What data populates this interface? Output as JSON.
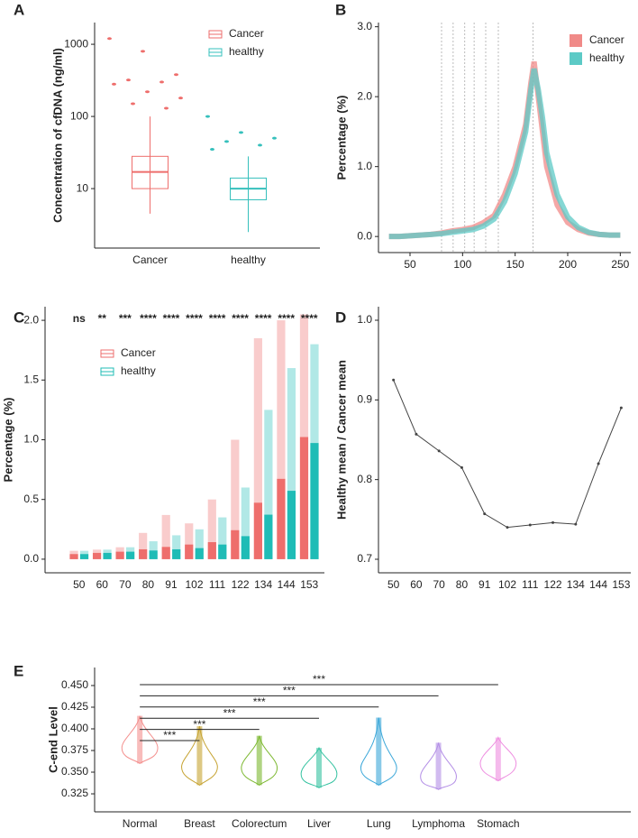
{
  "chart_data": [
    {
      "type": "box",
      "panel": "A",
      "ylabel": "Concentration of cfDNA (ng/ml)",
      "log_y": true,
      "categories": [
        "Cancer",
        "healthy"
      ],
      "ylim": [
        1.5,
        2000
      ],
      "yticks": [
        10,
        100,
        1000
      ],
      "series": [
        {
          "name": "Cancer",
          "color": "#ee6e6c",
          "low": 4.5,
          "q1": 10,
          "median": 17,
          "q3": 28,
          "high": 100,
          "outliers": [
            1200,
            800,
            380,
            320,
            300,
            280,
            220,
            180,
            150,
            130
          ]
        },
        {
          "name": "healthy",
          "color": "#36c0bc",
          "low": 2.5,
          "q1": 7,
          "median": 10,
          "q3": 14,
          "high": 28,
          "outliers": [
            100,
            60,
            50,
            45,
            40,
            35
          ]
        }
      ]
    },
    {
      "type": "line",
      "panel": "B",
      "ylabel": "Percentage (%)",
      "x": [
        30,
        40,
        50,
        60,
        70,
        80,
        90,
        100,
        110,
        120,
        130,
        140,
        150,
        160,
        165,
        168,
        172,
        176,
        180,
        190,
        200,
        210,
        220,
        230,
        240,
        250
      ],
      "xlim": [
        20,
        260
      ],
      "xticks": [
        50,
        100,
        150,
        200,
        250
      ],
      "ylim": [
        -0.23,
        3.06
      ],
      "yticks": [
        {
          "value": 0,
          "label": "0.0"
        },
        {
          "value": 1,
          "label": "1.0"
        },
        {
          "value": 2,
          "label": "2.0"
        },
        {
          "value": 3,
          "label": "3.0"
        }
      ],
      "vlines": [
        80,
        91,
        102,
        111,
        122,
        134,
        167
      ],
      "series": [
        {
          "name": "Cancer",
          "color": "#f08a88",
          "values": [
            0,
            0,
            0.01,
            0.02,
            0.03,
            0.05,
            0.08,
            0.1,
            0.13,
            0.2,
            0.3,
            0.6,
            1.0,
            1.6,
            2.2,
            2.5,
            2.0,
            1.5,
            1.0,
            0.45,
            0.2,
            0.1,
            0.05,
            0.03,
            0.02,
            0.02
          ]
        },
        {
          "name": "healthy",
          "color": "#5ccac6",
          "values": [
            0,
            0,
            0.01,
            0.02,
            0.03,
            0.04,
            0.06,
            0.08,
            0.1,
            0.15,
            0.25,
            0.5,
            0.9,
            1.5,
            2.1,
            2.4,
            2.1,
            1.7,
            1.2,
            0.6,
            0.28,
            0.13,
            0.06,
            0.03,
            0.02,
            0.02
          ]
        }
      ]
    },
    {
      "type": "strip",
      "panel": "C",
      "ylabel": "Percentage (%)",
      "categories": [
        "50",
        "60",
        "70",
        "80",
        "91",
        "102",
        "111",
        "122",
        "134",
        "144",
        "153"
      ],
      "significance": [
        "ns",
        "**",
        "***",
        "****",
        "****",
        "****",
        "****",
        "****",
        "****",
        "****",
        "****"
      ],
      "ylim": [
        -0.114,
        2.114
      ],
      "yticks": [
        {
          "value": 0,
          "label": "0.0"
        },
        0.5,
        {
          "value": 1,
          "label": "1.0"
        },
        1.5,
        {
          "value": 2,
          "label": "2.0"
        }
      ],
      "series": [
        {
          "name": "Cancer",
          "color": "#ee6e6c",
          "values": [
            0.02,
            0.03,
            0.04,
            0.06,
            0.08,
            0.1,
            0.12,
            0.22,
            0.45,
            0.65,
            1.0
          ],
          "max": [
            0.07,
            0.08,
            0.1,
            0.22,
            0.37,
            0.3,
            0.5,
            1.0,
            1.85,
            2.0,
            2.05
          ]
        },
        {
          "name": "healthy",
          "color": "#1fbcb6",
          "values": [
            0.02,
            0.03,
            0.04,
            0.05,
            0.06,
            0.07,
            0.1,
            0.17,
            0.35,
            0.55,
            0.95
          ],
          "max": [
            0.07,
            0.08,
            0.1,
            0.15,
            0.2,
            0.25,
            0.35,
            0.6,
            1.25,
            1.6,
            1.8
          ]
        }
      ]
    },
    {
      "type": "line",
      "panel": "D",
      "ylabel": "Healthy mean / Cancer mean",
      "categories": [
        "50",
        "60",
        "70",
        "80",
        "91",
        "102",
        "111",
        "122",
        "134",
        "144",
        "153"
      ],
      "ylim": [
        0.683,
        1.017
      ],
      "yticks": [
        0.7,
        0.8,
        0.9,
        {
          "value": 1,
          "label": "1.0"
        }
      ],
      "series": [
        {
          "color": "#444444",
          "values": [
            0.925,
            0.857,
            0.836,
            0.815,
            0.757,
            0.74,
            0.743,
            0.746,
            0.744,
            0.82,
            0.89
          ]
        }
      ]
    },
    {
      "type": "violin",
      "panel": "E",
      "ylabel": "C-end Level",
      "categories": [
        "Normal",
        "Breast",
        "Colorectum",
        "Liver",
        "Lung",
        "Lymphoma",
        "Stomach"
      ],
      "colors": [
        "#f4908e",
        "#c6a331",
        "#7cb82f",
        "#33c2a0",
        "#3aa7d9",
        "#b38ee6",
        "#ee8ce0"
      ],
      "min": [
        0.36,
        0.335,
        0.335,
        0.332,
        0.335,
        0.33,
        0.34
      ],
      "median": [
        0.378,
        0.356,
        0.355,
        0.348,
        0.355,
        0.345,
        0.36
      ],
      "max": [
        0.415,
        0.403,
        0.392,
        0.378,
        0.413,
        0.384,
        0.39
      ],
      "significance": [
        "***",
        "***",
        "***",
        "***",
        "***",
        "***"
      ],
      "ylim": [
        0.3042,
        0.4708
      ],
      "yticks": [
        {
          "value": 0.325,
          "label": "0.325"
        },
        {
          "value": 0.35,
          "label": "0.350"
        },
        {
          "value": 0.375,
          "label": "0.375"
        },
        {
          "value": 0.4,
          "label": "0.400"
        },
        {
          "value": 0.425,
          "label": "0.425"
        },
        {
          "value": 0.45,
          "label": "0.450"
        }
      ]
    }
  ]
}
